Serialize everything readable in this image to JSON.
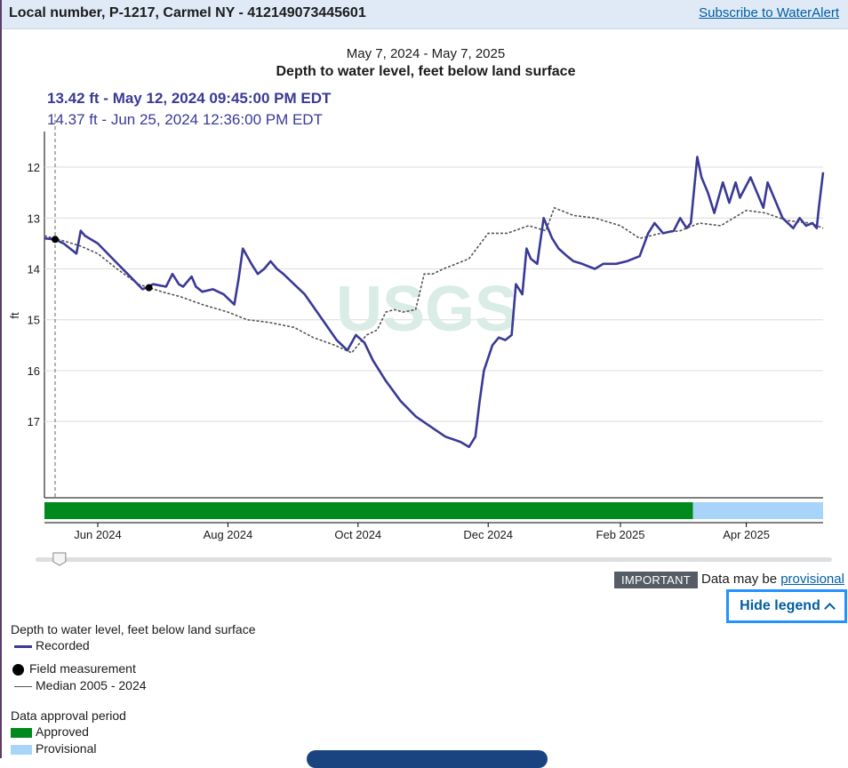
{
  "header": {
    "site_title": "Local number, P-1217, Carmel NY - 412149073445601",
    "subscribe_link": "Subscribe to WaterAlert"
  },
  "chart_date_range": "May 7, 2024 - May 7, 2025",
  "tooltip": {
    "line1": "13.42 ft - May 12, 2024 09:45:00 PM EDT",
    "line2": "14.37 ft - Jun 25, 2024 12:36:00 PM EDT"
  },
  "notice": {
    "badge": "IMPORTANT",
    "text": "Data may be",
    "link": "provisional"
  },
  "hide_legend_label": "Hide legend",
  "legend": {
    "section1_title": "Depth to water level, feet below land surface",
    "recorded": "Recorded",
    "field_measurement": "Field measurement",
    "median": "Median 2005 - 2024",
    "section2_title": "Data approval period",
    "approved": "Approved",
    "provisional": "Provisional"
  },
  "colors": {
    "recorded": "#3a3a96",
    "median": "#555555",
    "approved": "#008a1e",
    "provisional": "#a8d4fa",
    "link": "#005ea2",
    "focus": "#2491ff"
  },
  "chart_data": {
    "type": "line",
    "title": "Depth to water level, feet below land surface",
    "subtitle": "May 7, 2024 - May 7, 2025",
    "ylabel": "ft",
    "y_inverted": true,
    "ylim": [
      11.3,
      18.5
    ],
    "yticks": [
      12,
      13,
      14,
      15,
      16,
      17
    ],
    "xlim": [
      "2024-05-07",
      "2025-05-07"
    ],
    "xticks": [
      {
        "date": "2024-06-01",
        "label": "Jun 2024"
      },
      {
        "date": "2024-08-01",
        "label": "Aug 2024"
      },
      {
        "date": "2024-10-01",
        "label": "Oct 2024"
      },
      {
        "date": "2024-12-01",
        "label": "Dec 2024"
      },
      {
        "date": "2025-02-01",
        "label": "Feb 2025"
      },
      {
        "date": "2025-04-01",
        "label": "Apr 2025"
      }
    ],
    "cursor_date": "2024-05-12",
    "series": [
      {
        "name": "Recorded",
        "x": [
          "2024-05-07",
          "2024-05-12",
          "2024-05-16",
          "2024-05-22",
          "2024-05-24",
          "2024-05-26",
          "2024-06-01",
          "2024-06-08",
          "2024-06-15",
          "2024-06-22",
          "2024-06-27",
          "2024-07-03",
          "2024-07-06",
          "2024-07-09",
          "2024-07-11",
          "2024-07-15",
          "2024-07-17",
          "2024-07-20",
          "2024-07-25",
          "2024-07-30",
          "2024-08-04",
          "2024-08-06",
          "2024-08-08",
          "2024-08-12",
          "2024-08-15",
          "2024-08-18",
          "2024-08-21",
          "2024-08-24",
          "2024-08-27",
          "2024-09-01",
          "2024-09-06",
          "2024-09-11",
          "2024-09-16",
          "2024-09-21",
          "2024-09-26",
          "2024-09-30",
          "2024-10-04",
          "2024-10-08",
          "2024-10-14",
          "2024-10-21",
          "2024-10-28",
          "2024-11-04",
          "2024-11-11",
          "2024-11-18",
          "2024-11-22",
          "2024-11-25",
          "2024-11-27",
          "2024-11-29",
          "2024-12-03",
          "2024-12-06",
          "2024-12-09",
          "2024-12-12",
          "2024-12-14",
          "2024-12-17",
          "2024-12-19",
          "2024-12-21",
          "2024-12-24",
          "2024-12-27",
          "2024-12-31",
          "2025-01-03",
          "2025-01-07",
          "2025-01-10",
          "2025-01-14",
          "2025-01-20",
          "2025-01-24",
          "2025-01-30",
          "2025-02-04",
          "2025-02-10",
          "2025-02-14",
          "2025-02-17",
          "2025-02-19",
          "2025-02-21",
          "2025-02-26",
          "2025-03-01",
          "2025-03-04",
          "2025-03-06",
          "2025-03-09",
          "2025-03-11",
          "2025-03-14",
          "2025-03-17",
          "2025-03-21",
          "2025-03-24",
          "2025-03-27",
          "2025-03-29",
          "2025-04-03",
          "2025-04-05",
          "2025-04-09",
          "2025-04-11",
          "2025-04-14",
          "2025-04-18",
          "2025-04-23",
          "2025-04-26",
          "2025-04-29",
          "2025-05-02",
          "2025-05-04",
          "2025-05-05",
          "2025-05-07"
        ],
        "y": [
          13.4,
          13.42,
          13.5,
          13.7,
          13.25,
          13.35,
          13.5,
          13.8,
          14.1,
          14.4,
          14.3,
          14.35,
          14.1,
          14.3,
          14.35,
          14.15,
          14.35,
          14.45,
          14.4,
          14.5,
          14.7,
          14.2,
          13.6,
          13.9,
          14.1,
          14.0,
          13.85,
          14.0,
          14.1,
          14.3,
          14.5,
          14.8,
          15.1,
          15.4,
          15.6,
          15.3,
          15.45,
          15.8,
          16.2,
          16.6,
          16.9,
          17.1,
          17.3,
          17.4,
          17.5,
          17.3,
          16.6,
          16.0,
          15.5,
          15.35,
          15.4,
          15.3,
          14.3,
          14.5,
          13.6,
          13.8,
          13.9,
          13.0,
          13.4,
          13.6,
          13.75,
          13.85,
          13.9,
          14.0,
          13.9,
          13.9,
          13.85,
          13.75,
          13.3,
          13.1,
          13.2,
          13.3,
          13.25,
          13.0,
          13.2,
          13.1,
          11.8,
          12.2,
          12.5,
          12.9,
          12.3,
          12.7,
          12.3,
          12.6,
          12.2,
          12.4,
          12.8,
          12.3,
          12.6,
          13.0,
          13.2,
          13.0,
          13.15,
          13.1,
          13.2,
          12.8,
          12.1
        ]
      },
      {
        "name": "Median 2005 - 2024",
        "x": [
          "2024-05-07",
          "2024-05-16",
          "2024-05-24",
          "2024-06-01",
          "2024-06-10",
          "2024-06-20",
          "2024-07-01",
          "2024-07-10",
          "2024-07-20",
          "2024-08-01",
          "2024-08-10",
          "2024-08-20",
          "2024-09-01",
          "2024-09-10",
          "2024-09-20",
          "2024-09-28",
          "2024-10-05",
          "2024-10-10",
          "2024-10-14",
          "2024-10-18",
          "2024-10-22",
          "2024-10-28",
          "2024-11-01",
          "2024-11-05",
          "2024-11-10",
          "2024-11-16",
          "2024-11-22",
          "2024-12-01",
          "2024-12-10",
          "2024-12-20",
          "2024-12-28",
          "2025-01-01",
          "2025-01-10",
          "2025-01-20",
          "2025-02-01",
          "2025-02-10",
          "2025-02-20",
          "2025-03-01",
          "2025-03-10",
          "2025-03-20",
          "2025-04-01",
          "2025-04-10",
          "2025-04-20",
          "2025-05-01",
          "2025-05-07"
        ],
        "y": [
          13.35,
          13.45,
          13.55,
          13.7,
          14.0,
          14.3,
          14.45,
          14.55,
          14.7,
          14.85,
          15.0,
          15.05,
          15.15,
          15.35,
          15.5,
          15.65,
          15.3,
          15.2,
          14.85,
          14.8,
          14.85,
          14.8,
          14.1,
          14.1,
          14.0,
          13.9,
          13.8,
          13.3,
          13.3,
          13.15,
          13.25,
          12.8,
          12.95,
          13.0,
          13.15,
          13.4,
          13.3,
          13.25,
          13.1,
          13.15,
          12.85,
          12.9,
          13.05,
          13.1,
          13.2
        ]
      }
    ],
    "field_measurements": [
      {
        "x": "2024-05-12",
        "y": 13.42
      },
      {
        "x": "2024-06-25",
        "y": 14.37
      }
    ],
    "approval_periods": [
      {
        "label": "Approved",
        "start": "2024-05-07",
        "end": "2025-03-07"
      },
      {
        "label": "Provisional",
        "start": "2025-03-07",
        "end": "2025-05-07"
      }
    ],
    "slider_position": 0.03
  }
}
